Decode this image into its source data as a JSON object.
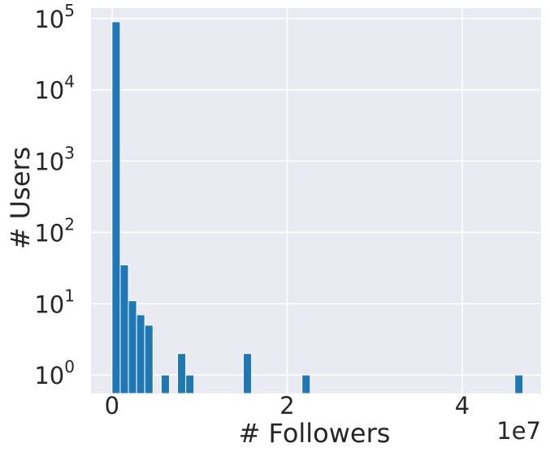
{
  "chart_data": {
    "type": "bar",
    "title": "",
    "xlabel": "# Followers",
    "ylabel": "# Users",
    "x_offset_label": "1e7",
    "yscale": "log",
    "xlim": [
      -2400000,
      49000000
    ],
    "ylim": [
      0.55,
      140000
    ],
    "x_ticks": [
      {
        "value": 0,
        "label": "0"
      },
      {
        "value": 20000000,
        "label": "2"
      },
      {
        "value": 40000000,
        "label": "4"
      }
    ],
    "y_ticks": [
      {
        "value": 1,
        "base": "10",
        "exp": "0"
      },
      {
        "value": 10,
        "base": "10",
        "exp": "1"
      },
      {
        "value": 100,
        "base": "10",
        "exp": "2"
      },
      {
        "value": 1000,
        "base": "10",
        "exp": "3"
      },
      {
        "value": 10000,
        "base": "10",
        "exp": "4"
      },
      {
        "value": 100000,
        "base": "10",
        "exp": "5"
      }
    ],
    "bin_width": 936000,
    "bins": [
      {
        "x": 0,
        "count": 90000
      },
      {
        "x": 936000,
        "count": 35
      },
      {
        "x": 1872000,
        "count": 11
      },
      {
        "x": 2808000,
        "count": 7
      },
      {
        "x": 3744000,
        "count": 5
      },
      {
        "x": 5616000,
        "count": 1
      },
      {
        "x": 7488000,
        "count": 2
      },
      {
        "x": 8424000,
        "count": 1
      },
      {
        "x": 15000000,
        "count": 2
      },
      {
        "x": 21700000,
        "count": 1
      },
      {
        "x": 46000000,
        "count": 1
      }
    ],
    "grid": true,
    "colors": {
      "bar": "#1f77b4",
      "plot_background": "#eaeaf2",
      "grid": "#ffffff",
      "text": "#262626"
    }
  }
}
